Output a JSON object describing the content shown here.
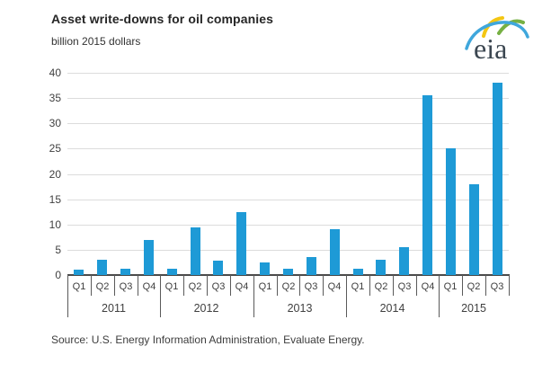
{
  "header": {
    "title": "Asset write-downs for oil companies",
    "subtitle": "billion 2015 dollars",
    "logo_text": "eia"
  },
  "chart_data": {
    "type": "bar",
    "title": "Asset write-downs for oil companies",
    "ylabel": "billion 2015 dollars",
    "xlabel": "",
    "ylim": [
      0,
      40
    ],
    "ytick_step": 5,
    "grid": "horizontal",
    "legend": "none",
    "bar_color": "#1E9AD6",
    "categories": [
      "Q1 2011",
      "Q2 2011",
      "Q3 2011",
      "Q4 2011",
      "Q1 2012",
      "Q2 2012",
      "Q3 2012",
      "Q4 2012",
      "Q1 2013",
      "Q2 2013",
      "Q3 2013",
      "Q4 2013",
      "Q1 2014",
      "Q2 2014",
      "Q3 2014",
      "Q4 2014",
      "Q1 2015",
      "Q2 2015",
      "Q3 2015"
    ],
    "values": [
      1.1,
      3.1,
      1.3,
      6.9,
      1.3,
      9.5,
      2.8,
      12.5,
      2.5,
      1.2,
      3.5,
      9.1,
      1.2,
      3.0,
      5.5,
      35.5,
      25.1,
      18.0,
      38.0
    ],
    "groups": [
      {
        "year": "2011",
        "quarters": [
          "Q1",
          "Q2",
          "Q3",
          "Q4"
        ],
        "values": [
          1.1,
          3.1,
          1.3,
          6.9
        ]
      },
      {
        "year": "2012",
        "quarters": [
          "Q1",
          "Q2",
          "Q3",
          "Q4"
        ],
        "values": [
          1.3,
          9.5,
          2.8,
          12.5
        ]
      },
      {
        "year": "2013",
        "quarters": [
          "Q1",
          "Q2",
          "Q3",
          "Q4"
        ],
        "values": [
          2.5,
          1.2,
          3.5,
          9.1
        ]
      },
      {
        "year": "2014",
        "quarters": [
          "Q1",
          "Q2",
          "Q3",
          "Q4"
        ],
        "values": [
          1.2,
          3.0,
          5.5,
          35.5
        ]
      },
      {
        "year": "2015",
        "quarters": [
          "Q1",
          "Q2",
          "Q3"
        ],
        "values": [
          25.1,
          18.0,
          38.0
        ]
      }
    ]
  },
  "footer": {
    "source": "Source:  U.S. Energy Information Administration, Evaluate Energy."
  }
}
